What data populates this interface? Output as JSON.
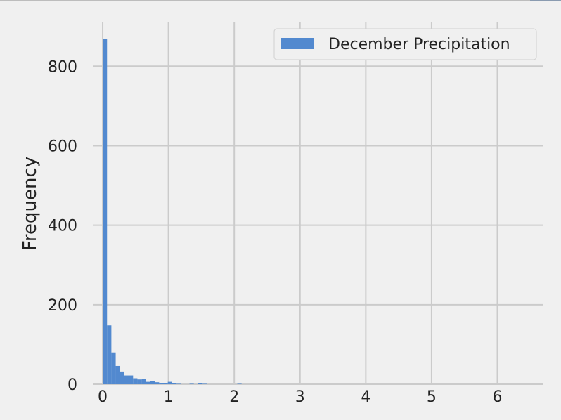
{
  "chart_data": {
    "type": "histogram",
    "title": "",
    "xlabel": "",
    "ylabel": "Frequency",
    "xlim": [
      -0.15,
      6.7
    ],
    "ylim": [
      0,
      910
    ],
    "x_ticks": [
      "0",
      "1",
      "2",
      "3",
      "4",
      "5",
      "6"
    ],
    "x_tick_values": [
      0,
      1,
      2,
      3,
      4,
      5,
      6
    ],
    "y_ticks": [
      "0",
      "200",
      "400",
      "600",
      "800"
    ],
    "y_tick_values": [
      0,
      200,
      400,
      600,
      800
    ],
    "grid": true,
    "legend": {
      "placement": "top-right",
      "entries": [
        "December Precipitation"
      ]
    },
    "bar_color": "#5289cf",
    "bin_width": 0.066,
    "series": [
      {
        "name": "December Precipitation",
        "bins": [
          {
            "x0": 0.0,
            "count": 868
          },
          {
            "x0": 0.066,
            "count": 148
          },
          {
            "x0": 0.132,
            "count": 80
          },
          {
            "x0": 0.198,
            "count": 46
          },
          {
            "x0": 0.264,
            "count": 32
          },
          {
            "x0": 0.33,
            "count": 22
          },
          {
            "x0": 0.396,
            "count": 22
          },
          {
            "x0": 0.462,
            "count": 15
          },
          {
            "x0": 0.528,
            "count": 12
          },
          {
            "x0": 0.594,
            "count": 14
          },
          {
            "x0": 0.66,
            "count": 6
          },
          {
            "x0": 0.726,
            "count": 8
          },
          {
            "x0": 0.792,
            "count": 5
          },
          {
            "x0": 0.858,
            "count": 3
          },
          {
            "x0": 0.924,
            "count": 2
          },
          {
            "x0": 0.99,
            "count": 6
          },
          {
            "x0": 1.056,
            "count": 2
          },
          {
            "x0": 1.122,
            "count": 1
          },
          {
            "x0": 1.32,
            "count": 1
          },
          {
            "x0": 1.452,
            "count": 2
          },
          {
            "x0": 1.518,
            "count": 1
          },
          {
            "x0": 2.046,
            "count": 1
          }
        ]
      }
    ]
  }
}
